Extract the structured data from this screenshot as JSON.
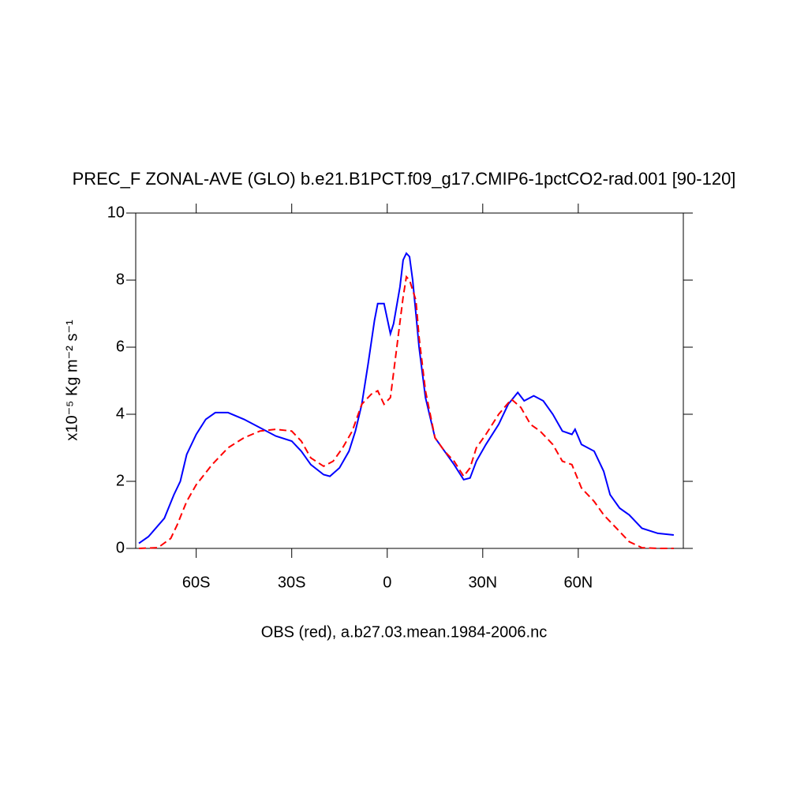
{
  "chart_data": {
    "type": "line",
    "title": "PREC_F ZONAL-AVE (GLO) b.e21.B1PCT.f09_g17.CMIP6-1pctCO2-rad.001 [90-120]",
    "xlabel": "OBS (red), a.b27.03.mean.1984-2006.nc",
    "ylabel": "x10⁻⁵ Kg m⁻² s⁻¹",
    "xlim": [
      -79,
      93
    ],
    "xticks": [
      {
        "value": -60,
        "label": "60S"
      },
      {
        "value": -30,
        "label": "30S"
      },
      0,
      {
        "value": 30,
        "label": "30N"
      },
      {
        "value": 60,
        "label": "60N"
      }
    ],
    "ylim": [
      0,
      10
    ],
    "yticks": [
      0,
      2,
      4,
      6,
      8,
      10
    ],
    "grid": false,
    "series": [
      {
        "color": "#0000ff",
        "dash": "solid",
        "x": [
          -78,
          -75,
          -70,
          -67,
          -65,
          -63,
          -60,
          -57,
          -54,
          -50,
          -45,
          -40,
          -35,
          -30,
          -27,
          -24,
          -20,
          -18,
          -15,
          -12,
          -10,
          -8,
          -6,
          -4,
          -3,
          -1,
          1,
          2,
          4,
          5,
          6,
          7,
          8,
          9,
          10,
          12,
          15,
          18,
          21,
          24,
          26,
          28,
          31,
          35,
          38,
          41,
          43,
          46,
          49,
          52,
          55,
          58,
          59,
          61,
          65,
          68,
          70,
          73,
          76,
          80,
          85,
          90
        ],
        "values": [
          0.15,
          0.35,
          0.9,
          1.6,
          2.0,
          2.8,
          3.4,
          3.85,
          4.05,
          4.05,
          3.85,
          3.6,
          3.35,
          3.2,
          2.9,
          2.5,
          2.2,
          2.15,
          2.4,
          2.9,
          3.5,
          4.3,
          5.5,
          6.8,
          7.3,
          7.3,
          6.4,
          6.7,
          7.8,
          8.6,
          8.8,
          8.7,
          8.0,
          7.0,
          6.0,
          4.5,
          3.3,
          2.9,
          2.5,
          2.05,
          2.1,
          2.6,
          3.1,
          3.7,
          4.3,
          4.65,
          4.4,
          4.55,
          4.4,
          4.0,
          3.5,
          3.4,
          3.55,
          3.1,
          2.9,
          2.3,
          1.6,
          1.2,
          1.0,
          0.6,
          0.45,
          0.4
        ]
      },
      {
        "color": "#ff0000",
        "dash": "dashed",
        "x": [
          -78,
          -72,
          -68,
          -66,
          -63,
          -60,
          -55,
          -50,
          -45,
          -40,
          -35,
          -30,
          -27,
          -24,
          -20,
          -17,
          -14,
          -11,
          -8,
          -5,
          -3,
          -1,
          1,
          3,
          5,
          6,
          7,
          9,
          10,
          12,
          15,
          18,
          21,
          24,
          26,
          28,
          31,
          35,
          39,
          42,
          45,
          48,
          52,
          55,
          58,
          61,
          65,
          68,
          72,
          76,
          80,
          85,
          90
        ],
        "values": [
          0,
          0.02,
          0.3,
          0.7,
          1.4,
          1.9,
          2.5,
          3.0,
          3.3,
          3.5,
          3.55,
          3.5,
          3.2,
          2.7,
          2.45,
          2.6,
          3.0,
          3.5,
          4.3,
          4.6,
          4.7,
          4.3,
          4.5,
          6.0,
          7.5,
          8.1,
          8.0,
          7.4,
          6.3,
          4.7,
          3.3,
          2.9,
          2.6,
          2.15,
          2.4,
          3.0,
          3.4,
          4.0,
          4.45,
          4.2,
          3.7,
          3.5,
          3.1,
          2.6,
          2.5,
          1.8,
          1.4,
          1.0,
          0.6,
          0.2,
          0.02,
          0,
          0
        ]
      }
    ]
  }
}
